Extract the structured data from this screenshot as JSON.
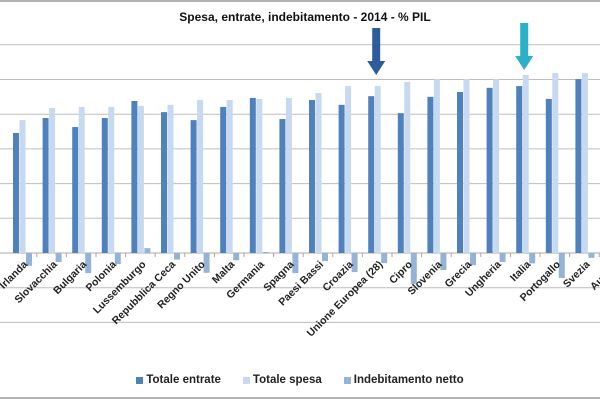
{
  "chart_data": {
    "type": "bar",
    "title": "Spesa, entrate, indebitamento - 2014 - % PIL",
    "xlabel": "",
    "ylabel": "",
    "ylim": [
      -20,
      70
    ],
    "grid": true,
    "legend_position": "bottom",
    "categories": [
      "Irlanda",
      "Slovacchia",
      "Bulgaria",
      "Polonia",
      "Lussemburgo",
      "Repubblica Ceca",
      "Regno Unito",
      "Malta",
      "Germania",
      "Spagna",
      "Paesi Bassi",
      "Croazia",
      "Unione Europea (28)",
      "Cipro",
      "Slovenia",
      "Grecia",
      "Ungheria",
      "Italia",
      "Portogallo",
      "Svezia",
      "Austria"
    ],
    "series": [
      {
        "name": "Totale entrate",
        "color": "#4f81bd",
        "values": [
          34.6,
          38.9,
          36.3,
          38.9,
          43.8,
          40.6,
          38.3,
          42.1,
          44.7,
          38.6,
          44.1,
          42.7,
          45.2,
          40.3,
          45.0,
          46.4,
          47.6,
          48.1,
          44.4,
          50.1,
          null
        ]
      },
      {
        "name": "Totale spesa",
        "color": "#c6d9f1",
        "values": [
          38.3,
          41.8,
          42.1,
          42.1,
          42.4,
          42.7,
          44.1,
          44.1,
          44.4,
          44.7,
          46.1,
          48.1,
          48.1,
          49.3,
          50.1,
          50.1,
          50.1,
          51.3,
          51.9,
          51.9,
          null
        ]
      },
      {
        "name": "Indebitamento netto",
        "color": "#95b3d7",
        "values": [
          -3.7,
          -2.6,
          -5.8,
          -3.2,
          1.4,
          -1.9,
          -5.7,
          -2.1,
          0.3,
          -5.8,
          -2.3,
          -5.5,
          -2.9,
          -8.9,
          -4.9,
          -3.5,
          -2.6,
          -3.0,
          -7.2,
          -1.4,
          null
        ]
      }
    ],
    "annotations": [
      {
        "type": "arrow",
        "target": "Unione Europea (28)",
        "color": "#2e5c9a"
      },
      {
        "type": "arrow",
        "target": "Italia",
        "color": "#2ab0c8"
      }
    ]
  }
}
